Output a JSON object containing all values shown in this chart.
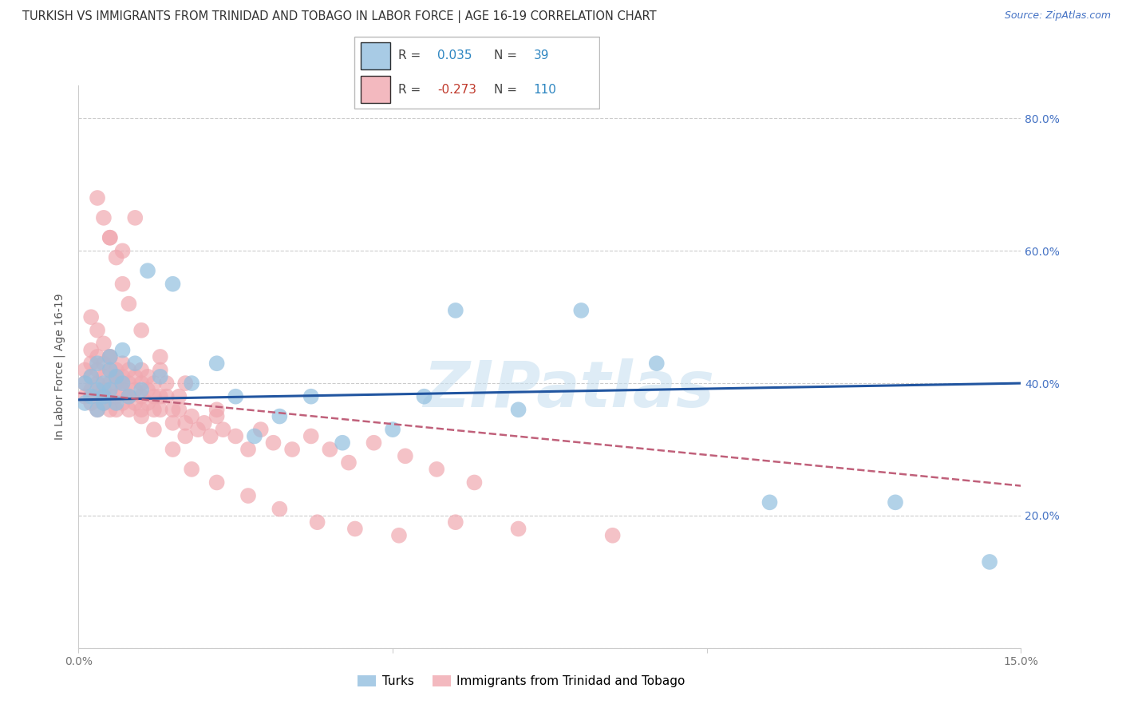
{
  "title": "TURKISH VS IMMIGRANTS FROM TRINIDAD AND TOBAGO IN LABOR FORCE | AGE 16-19 CORRELATION CHART",
  "source": "Source: ZipAtlas.com",
  "ylabel": "In Labor Force | Age 16-19",
  "xlim": [
    0.0,
    0.15
  ],
  "ylim": [
    0.0,
    0.85
  ],
  "yticks": [
    0.0,
    0.2,
    0.4,
    0.6,
    0.8
  ],
  "xticks": [
    0.0,
    0.05,
    0.1,
    0.15
  ],
  "turks_label": "Turks",
  "tt_label": "Immigrants from Trinidad and Tobago",
  "turks_color": "#92BFDF",
  "tt_color": "#F0A8B0",
  "turks_line_color": "#2155A0",
  "tt_line_color": "#C0607A",
  "watermark": "ZIPatlas",
  "title_fontsize": 10.5,
  "axis_label_fontsize": 10,
  "tick_fontsize": 10,
  "legend_fontsize": 11,
  "source_fontsize": 9,
  "turks_x": [
    0.001,
    0.001,
    0.002,
    0.002,
    0.003,
    0.003,
    0.003,
    0.004,
    0.004,
    0.004,
    0.005,
    0.005,
    0.005,
    0.006,
    0.006,
    0.007,
    0.007,
    0.008,
    0.009,
    0.01,
    0.011,
    0.013,
    0.015,
    0.018,
    0.022,
    0.025,
    0.028,
    0.032,
    0.037,
    0.042,
    0.05,
    0.055,
    0.06,
    0.07,
    0.08,
    0.092,
    0.11,
    0.13,
    0.145
  ],
  "turks_y": [
    0.37,
    0.4,
    0.38,
    0.41,
    0.36,
    0.39,
    0.43,
    0.38,
    0.4,
    0.37,
    0.42,
    0.39,
    0.44,
    0.41,
    0.37,
    0.4,
    0.45,
    0.38,
    0.43,
    0.39,
    0.57,
    0.41,
    0.55,
    0.4,
    0.43,
    0.38,
    0.32,
    0.35,
    0.38,
    0.31,
    0.33,
    0.38,
    0.51,
    0.36,
    0.51,
    0.43,
    0.22,
    0.22,
    0.13
  ],
  "tt_x": [
    0.001,
    0.001,
    0.001,
    0.002,
    0.002,
    0.002,
    0.002,
    0.002,
    0.003,
    0.003,
    0.003,
    0.003,
    0.003,
    0.004,
    0.004,
    0.004,
    0.004,
    0.004,
    0.005,
    0.005,
    0.005,
    0.005,
    0.005,
    0.005,
    0.006,
    0.006,
    0.006,
    0.006,
    0.007,
    0.007,
    0.007,
    0.007,
    0.007,
    0.008,
    0.008,
    0.008,
    0.008,
    0.009,
    0.009,
    0.009,
    0.009,
    0.01,
    0.01,
    0.01,
    0.01,
    0.011,
    0.011,
    0.011,
    0.012,
    0.012,
    0.012,
    0.013,
    0.013,
    0.013,
    0.014,
    0.014,
    0.015,
    0.015,
    0.016,
    0.016,
    0.017,
    0.017,
    0.018,
    0.019,
    0.02,
    0.021,
    0.022,
    0.023,
    0.025,
    0.027,
    0.029,
    0.031,
    0.034,
    0.037,
    0.04,
    0.043,
    0.047,
    0.052,
    0.057,
    0.063,
    0.002,
    0.003,
    0.004,
    0.005,
    0.006,
    0.007,
    0.008,
    0.01,
    0.012,
    0.015,
    0.018,
    0.022,
    0.027,
    0.032,
    0.038,
    0.044,
    0.051,
    0.06,
    0.07,
    0.085,
    0.003,
    0.004,
    0.005,
    0.006,
    0.007,
    0.008,
    0.01,
    0.013,
    0.017,
    0.022
  ],
  "tt_y": [
    0.38,
    0.4,
    0.42,
    0.39,
    0.41,
    0.43,
    0.37,
    0.45,
    0.4,
    0.38,
    0.42,
    0.36,
    0.44,
    0.39,
    0.41,
    0.37,
    0.43,
    0.38,
    0.4,
    0.42,
    0.38,
    0.36,
    0.44,
    0.62,
    0.4,
    0.38,
    0.41,
    0.36,
    0.43,
    0.39,
    0.41,
    0.37,
    0.6,
    0.38,
    0.4,
    0.42,
    0.36,
    0.39,
    0.41,
    0.37,
    0.65,
    0.4,
    0.38,
    0.36,
    0.42,
    0.39,
    0.41,
    0.37,
    0.38,
    0.36,
    0.4,
    0.38,
    0.42,
    0.36,
    0.4,
    0.38,
    0.36,
    0.34,
    0.38,
    0.36,
    0.34,
    0.32,
    0.35,
    0.33,
    0.34,
    0.32,
    0.35,
    0.33,
    0.32,
    0.3,
    0.33,
    0.31,
    0.3,
    0.32,
    0.3,
    0.28,
    0.31,
    0.29,
    0.27,
    0.25,
    0.5,
    0.48,
    0.46,
    0.44,
    0.42,
    0.4,
    0.38,
    0.35,
    0.33,
    0.3,
    0.27,
    0.25,
    0.23,
    0.21,
    0.19,
    0.18,
    0.17,
    0.19,
    0.18,
    0.17,
    0.68,
    0.65,
    0.62,
    0.59,
    0.55,
    0.52,
    0.48,
    0.44,
    0.4,
    0.36
  ]
}
